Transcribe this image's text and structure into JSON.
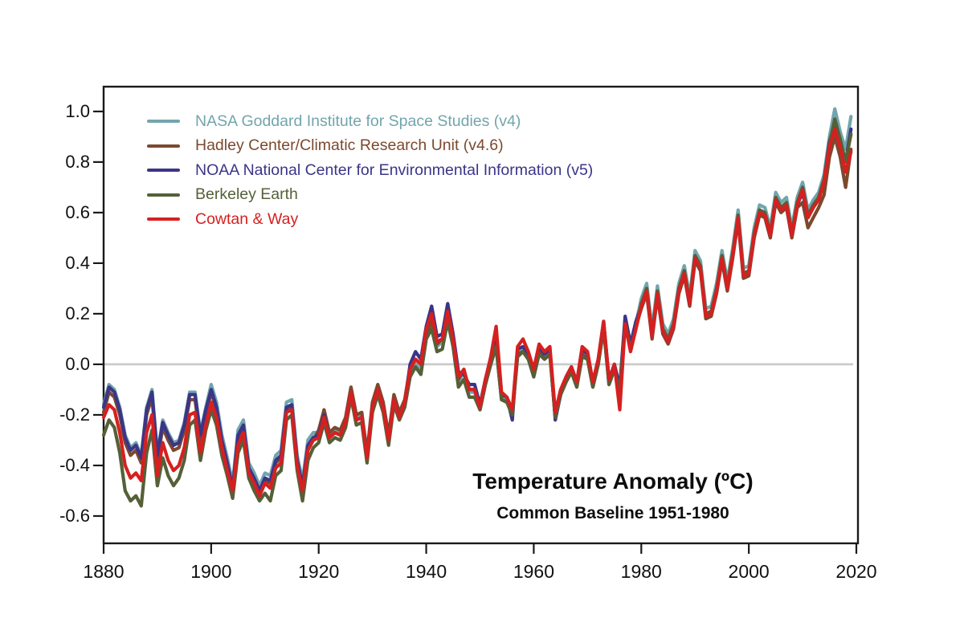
{
  "figure": {
    "background": "#ffffff",
    "axis_color": "#1a1a1a",
    "zero_line_color": "#c9c9c9"
  },
  "chart_data": {
    "type": "line",
    "title": "Temperature Anomaly (ºC)",
    "subtitle": "Common Baseline 1951-1980",
    "xlabel": "",
    "ylabel": "",
    "x_start": 1880,
    "x_end": 2019,
    "x_step": 1,
    "xlim": [
      1880,
      2020.3
    ],
    "ylim": [
      -0.708,
      1.098
    ],
    "xticks": [
      1880,
      1900,
      1920,
      1940,
      1960,
      1980,
      2000,
      2020
    ],
    "yticks": [
      1.0,
      0.8,
      0.6,
      0.4,
      0.2,
      0.0,
      -0.2,
      -0.4,
      -0.6
    ],
    "ytick_labels": [
      "1.0",
      "0.8",
      "0.6",
      "0.4",
      "0.2",
      "0.0",
      "-0.2",
      "-0.4",
      "-0.6"
    ],
    "grid": false,
    "zero_line": true,
    "legend_position": "top-left-inside",
    "series": [
      {
        "name": "NASA Goddard Institute for Space Studies (v4)",
        "color": "#72a5ad",
        "values": [
          -0.16,
          -0.08,
          -0.1,
          -0.17,
          -0.28,
          -0.33,
          -0.31,
          -0.36,
          -0.17,
          -0.1,
          -0.35,
          -0.22,
          -0.27,
          -0.31,
          -0.3,
          -0.23,
          -0.11,
          -0.11,
          -0.27,
          -0.17,
          -0.08,
          -0.15,
          -0.28,
          -0.37,
          -0.47,
          -0.26,
          -0.22,
          -0.39,
          -0.43,
          -0.48,
          -0.43,
          -0.44,
          -0.36,
          -0.34,
          -0.15,
          -0.14,
          -0.36,
          -0.46,
          -0.3,
          -0.27,
          -0.27,
          -0.19,
          -0.28,
          -0.26,
          -0.27,
          -0.22,
          -0.1,
          -0.21,
          -0.2,
          -0.36,
          -0.16,
          -0.09,
          -0.16,
          -0.29,
          -0.13,
          -0.2,
          -0.15,
          -0.03,
          0.0,
          -0.02,
          0.13,
          0.18,
          0.07,
          0.09,
          0.2,
          0.09,
          -0.07,
          -0.03,
          -0.11,
          -0.11,
          -0.17,
          -0.07,
          0.01,
          0.08,
          -0.13,
          -0.14,
          -0.19,
          0.05,
          0.06,
          0.03,
          -0.03,
          0.06,
          0.03,
          0.05,
          -0.2,
          -0.11,
          -0.06,
          -0.02,
          -0.08,
          0.05,
          0.03,
          -0.08,
          0.01,
          0.16,
          -0.07,
          -0.01,
          -0.1,
          0.18,
          0.07,
          0.16,
          0.26,
          0.32,
          0.14,
          0.31,
          0.16,
          0.12,
          0.18,
          0.32,
          0.39,
          0.27,
          0.45,
          0.41,
          0.22,
          0.23,
          0.32,
          0.45,
          0.33,
          0.46,
          0.61,
          0.38,
          0.39,
          0.54,
          0.63,
          0.62,
          0.54,
          0.68,
          0.64,
          0.66,
          0.54,
          0.66,
          0.72,
          0.61,
          0.65,
          0.68,
          0.75,
          0.9,
          1.01,
          0.92,
          0.85,
          0.98
        ]
      },
      {
        "name": "Hadley Center/Climatic Research Unit (v4.6)",
        "color": "#7c492d",
        "values": [
          -0.19,
          -0.11,
          -0.13,
          -0.2,
          -0.31,
          -0.36,
          -0.34,
          -0.39,
          -0.2,
          -0.13,
          -0.38,
          -0.25,
          -0.3,
          -0.34,
          -0.33,
          -0.26,
          -0.14,
          -0.14,
          -0.3,
          -0.2,
          -0.11,
          -0.18,
          -0.31,
          -0.4,
          -0.5,
          -0.29,
          -0.25,
          -0.42,
          -0.46,
          -0.51,
          -0.46,
          -0.47,
          -0.39,
          -0.37,
          -0.18,
          -0.17,
          -0.39,
          -0.49,
          -0.33,
          -0.3,
          -0.26,
          -0.18,
          -0.27,
          -0.25,
          -0.26,
          -0.21,
          -0.09,
          -0.2,
          -0.19,
          -0.35,
          -0.15,
          -0.08,
          -0.15,
          -0.28,
          -0.12,
          -0.19,
          -0.14,
          -0.01,
          0.02,
          0.0,
          0.12,
          0.17,
          0.08,
          0.1,
          0.18,
          0.1,
          -0.06,
          -0.02,
          -0.1,
          -0.1,
          -0.18,
          -0.08,
          0.0,
          0.07,
          -0.14,
          -0.15,
          -0.2,
          0.04,
          0.05,
          0.02,
          -0.04,
          0.05,
          0.02,
          0.04,
          -0.21,
          -0.12,
          -0.07,
          -0.03,
          -0.09,
          0.04,
          0.02,
          -0.09,
          0.0,
          0.15,
          -0.08,
          -0.02,
          -0.11,
          0.17,
          0.06,
          0.15,
          0.22,
          0.28,
          0.1,
          0.27,
          0.12,
          0.08,
          0.14,
          0.28,
          0.35,
          0.23,
          0.41,
          0.37,
          0.18,
          0.19,
          0.28,
          0.41,
          0.29,
          0.42,
          0.57,
          0.34,
          0.35,
          0.5,
          0.59,
          0.58,
          0.5,
          0.64,
          0.6,
          0.62,
          0.5,
          0.62,
          0.64,
          0.54,
          0.58,
          0.62,
          0.67,
          0.82,
          0.9,
          0.82,
          0.7,
          0.85
        ]
      },
      {
        "name": "NOAA National Center for Environmental Information (v5)",
        "color": "#3b3588",
        "values": [
          -0.17,
          -0.09,
          -0.11,
          -0.18,
          -0.29,
          -0.34,
          -0.32,
          -0.37,
          -0.18,
          -0.11,
          -0.36,
          -0.23,
          -0.28,
          -0.32,
          -0.31,
          -0.24,
          -0.12,
          -0.12,
          -0.28,
          -0.18,
          -0.1,
          -0.17,
          -0.3,
          -0.39,
          -0.49,
          -0.28,
          -0.24,
          -0.41,
          -0.45,
          -0.5,
          -0.45,
          -0.46,
          -0.38,
          -0.36,
          -0.17,
          -0.16,
          -0.38,
          -0.48,
          -0.32,
          -0.29,
          -0.28,
          -0.2,
          -0.29,
          -0.27,
          -0.28,
          -0.23,
          -0.11,
          -0.22,
          -0.21,
          -0.37,
          -0.17,
          -0.1,
          -0.17,
          -0.3,
          -0.14,
          -0.21,
          -0.16,
          0.0,
          0.05,
          0.02,
          0.15,
          0.23,
          0.11,
          0.12,
          0.24,
          0.12,
          -0.03,
          -0.04,
          -0.08,
          -0.08,
          -0.16,
          -0.06,
          0.02,
          0.09,
          -0.12,
          -0.13,
          -0.22,
          0.06,
          0.07,
          0.04,
          -0.02,
          0.07,
          0.04,
          0.06,
          -0.22,
          -0.12,
          -0.05,
          -0.01,
          -0.07,
          0.06,
          0.04,
          -0.07,
          0.02,
          0.17,
          -0.06,
          0.0,
          -0.09,
          0.19,
          0.08,
          0.17,
          0.23,
          0.29,
          0.11,
          0.28,
          0.13,
          0.09,
          0.15,
          0.29,
          0.36,
          0.24,
          0.42,
          0.38,
          0.19,
          0.2,
          0.29,
          0.42,
          0.3,
          0.43,
          0.58,
          0.35,
          0.36,
          0.51,
          0.6,
          0.59,
          0.51,
          0.65,
          0.61,
          0.63,
          0.51,
          0.63,
          0.68,
          0.58,
          0.62,
          0.66,
          0.73,
          0.88,
          0.95,
          0.88,
          0.8,
          0.93
        ]
      },
      {
        "name": "Berkeley Earth",
        "color": "#556038",
        "values": [
          -0.28,
          -0.22,
          -0.25,
          -0.35,
          -0.5,
          -0.54,
          -0.52,
          -0.56,
          -0.35,
          -0.26,
          -0.48,
          -0.37,
          -0.44,
          -0.48,
          -0.45,
          -0.38,
          -0.24,
          -0.22,
          -0.38,
          -0.26,
          -0.18,
          -0.24,
          -0.36,
          -0.44,
          -0.53,
          -0.35,
          -0.3,
          -0.45,
          -0.5,
          -0.54,
          -0.51,
          -0.54,
          -0.44,
          -0.42,
          -0.22,
          -0.2,
          -0.42,
          -0.54,
          -0.38,
          -0.33,
          -0.31,
          -0.23,
          -0.31,
          -0.29,
          -0.3,
          -0.25,
          -0.13,
          -0.24,
          -0.23,
          -0.39,
          -0.19,
          -0.12,
          -0.19,
          -0.32,
          -0.16,
          -0.22,
          -0.17,
          -0.05,
          -0.01,
          -0.04,
          0.1,
          0.14,
          0.05,
          0.06,
          0.17,
          0.07,
          -0.09,
          -0.06,
          -0.13,
          -0.13,
          -0.18,
          -0.08,
          0.0,
          0.07,
          -0.14,
          -0.15,
          -0.2,
          0.03,
          0.05,
          0.02,
          -0.05,
          0.04,
          0.02,
          0.04,
          -0.21,
          -0.12,
          -0.07,
          -0.03,
          -0.09,
          0.03,
          0.02,
          -0.09,
          0.0,
          0.14,
          -0.08,
          -0.02,
          -0.11,
          0.16,
          0.06,
          0.14,
          0.24,
          0.3,
          0.12,
          0.29,
          0.14,
          0.1,
          0.16,
          0.3,
          0.37,
          0.25,
          0.43,
          0.39,
          0.2,
          0.21,
          0.3,
          0.43,
          0.31,
          0.44,
          0.59,
          0.36,
          0.37,
          0.52,
          0.61,
          0.6,
          0.52,
          0.66,
          0.62,
          0.64,
          0.52,
          0.64,
          0.7,
          0.59,
          0.63,
          0.66,
          0.73,
          0.87,
          0.97,
          0.89,
          0.8,
          0.91
        ]
      },
      {
        "name": "Cowtan & Way",
        "color": "#d62020",
        "values": [
          -0.21,
          -0.16,
          -0.18,
          -0.27,
          -0.4,
          -0.45,
          -0.43,
          -0.46,
          -0.27,
          -0.2,
          -0.44,
          -0.31,
          -0.38,
          -0.42,
          -0.4,
          -0.33,
          -0.2,
          -0.19,
          -0.35,
          -0.24,
          -0.15,
          -0.21,
          -0.33,
          -0.42,
          -0.5,
          -0.32,
          -0.27,
          -0.43,
          -0.47,
          -0.52,
          -0.47,
          -0.49,
          -0.41,
          -0.39,
          -0.19,
          -0.18,
          -0.4,
          -0.5,
          -0.34,
          -0.3,
          -0.29,
          -0.21,
          -0.29,
          -0.27,
          -0.28,
          -0.23,
          -0.11,
          -0.22,
          -0.21,
          -0.37,
          -0.17,
          -0.1,
          -0.17,
          -0.3,
          -0.14,
          -0.21,
          -0.15,
          -0.02,
          0.02,
          0.0,
          0.14,
          0.2,
          0.09,
          0.1,
          0.21,
          0.1,
          -0.05,
          -0.02,
          -0.1,
          -0.1,
          -0.17,
          -0.06,
          0.03,
          0.15,
          -0.11,
          -0.13,
          -0.18,
          0.07,
          0.1,
          0.05,
          -0.02,
          0.08,
          0.05,
          0.07,
          -0.19,
          -0.1,
          -0.05,
          -0.01,
          -0.07,
          0.07,
          0.05,
          -0.07,
          0.02,
          0.17,
          -0.06,
          0.0,
          -0.18,
          0.16,
          0.05,
          0.14,
          0.23,
          0.29,
          0.11,
          0.28,
          0.13,
          0.09,
          0.15,
          0.29,
          0.36,
          0.24,
          0.42,
          0.38,
          0.19,
          0.2,
          0.29,
          0.42,
          0.3,
          0.43,
          0.58,
          0.35,
          0.36,
          0.51,
          0.6,
          0.59,
          0.51,
          0.65,
          0.61,
          0.63,
          0.51,
          0.63,
          0.69,
          0.58,
          0.62,
          0.65,
          0.72,
          0.86,
          0.93,
          0.86,
          0.76,
          0.84
        ]
      }
    ]
  }
}
